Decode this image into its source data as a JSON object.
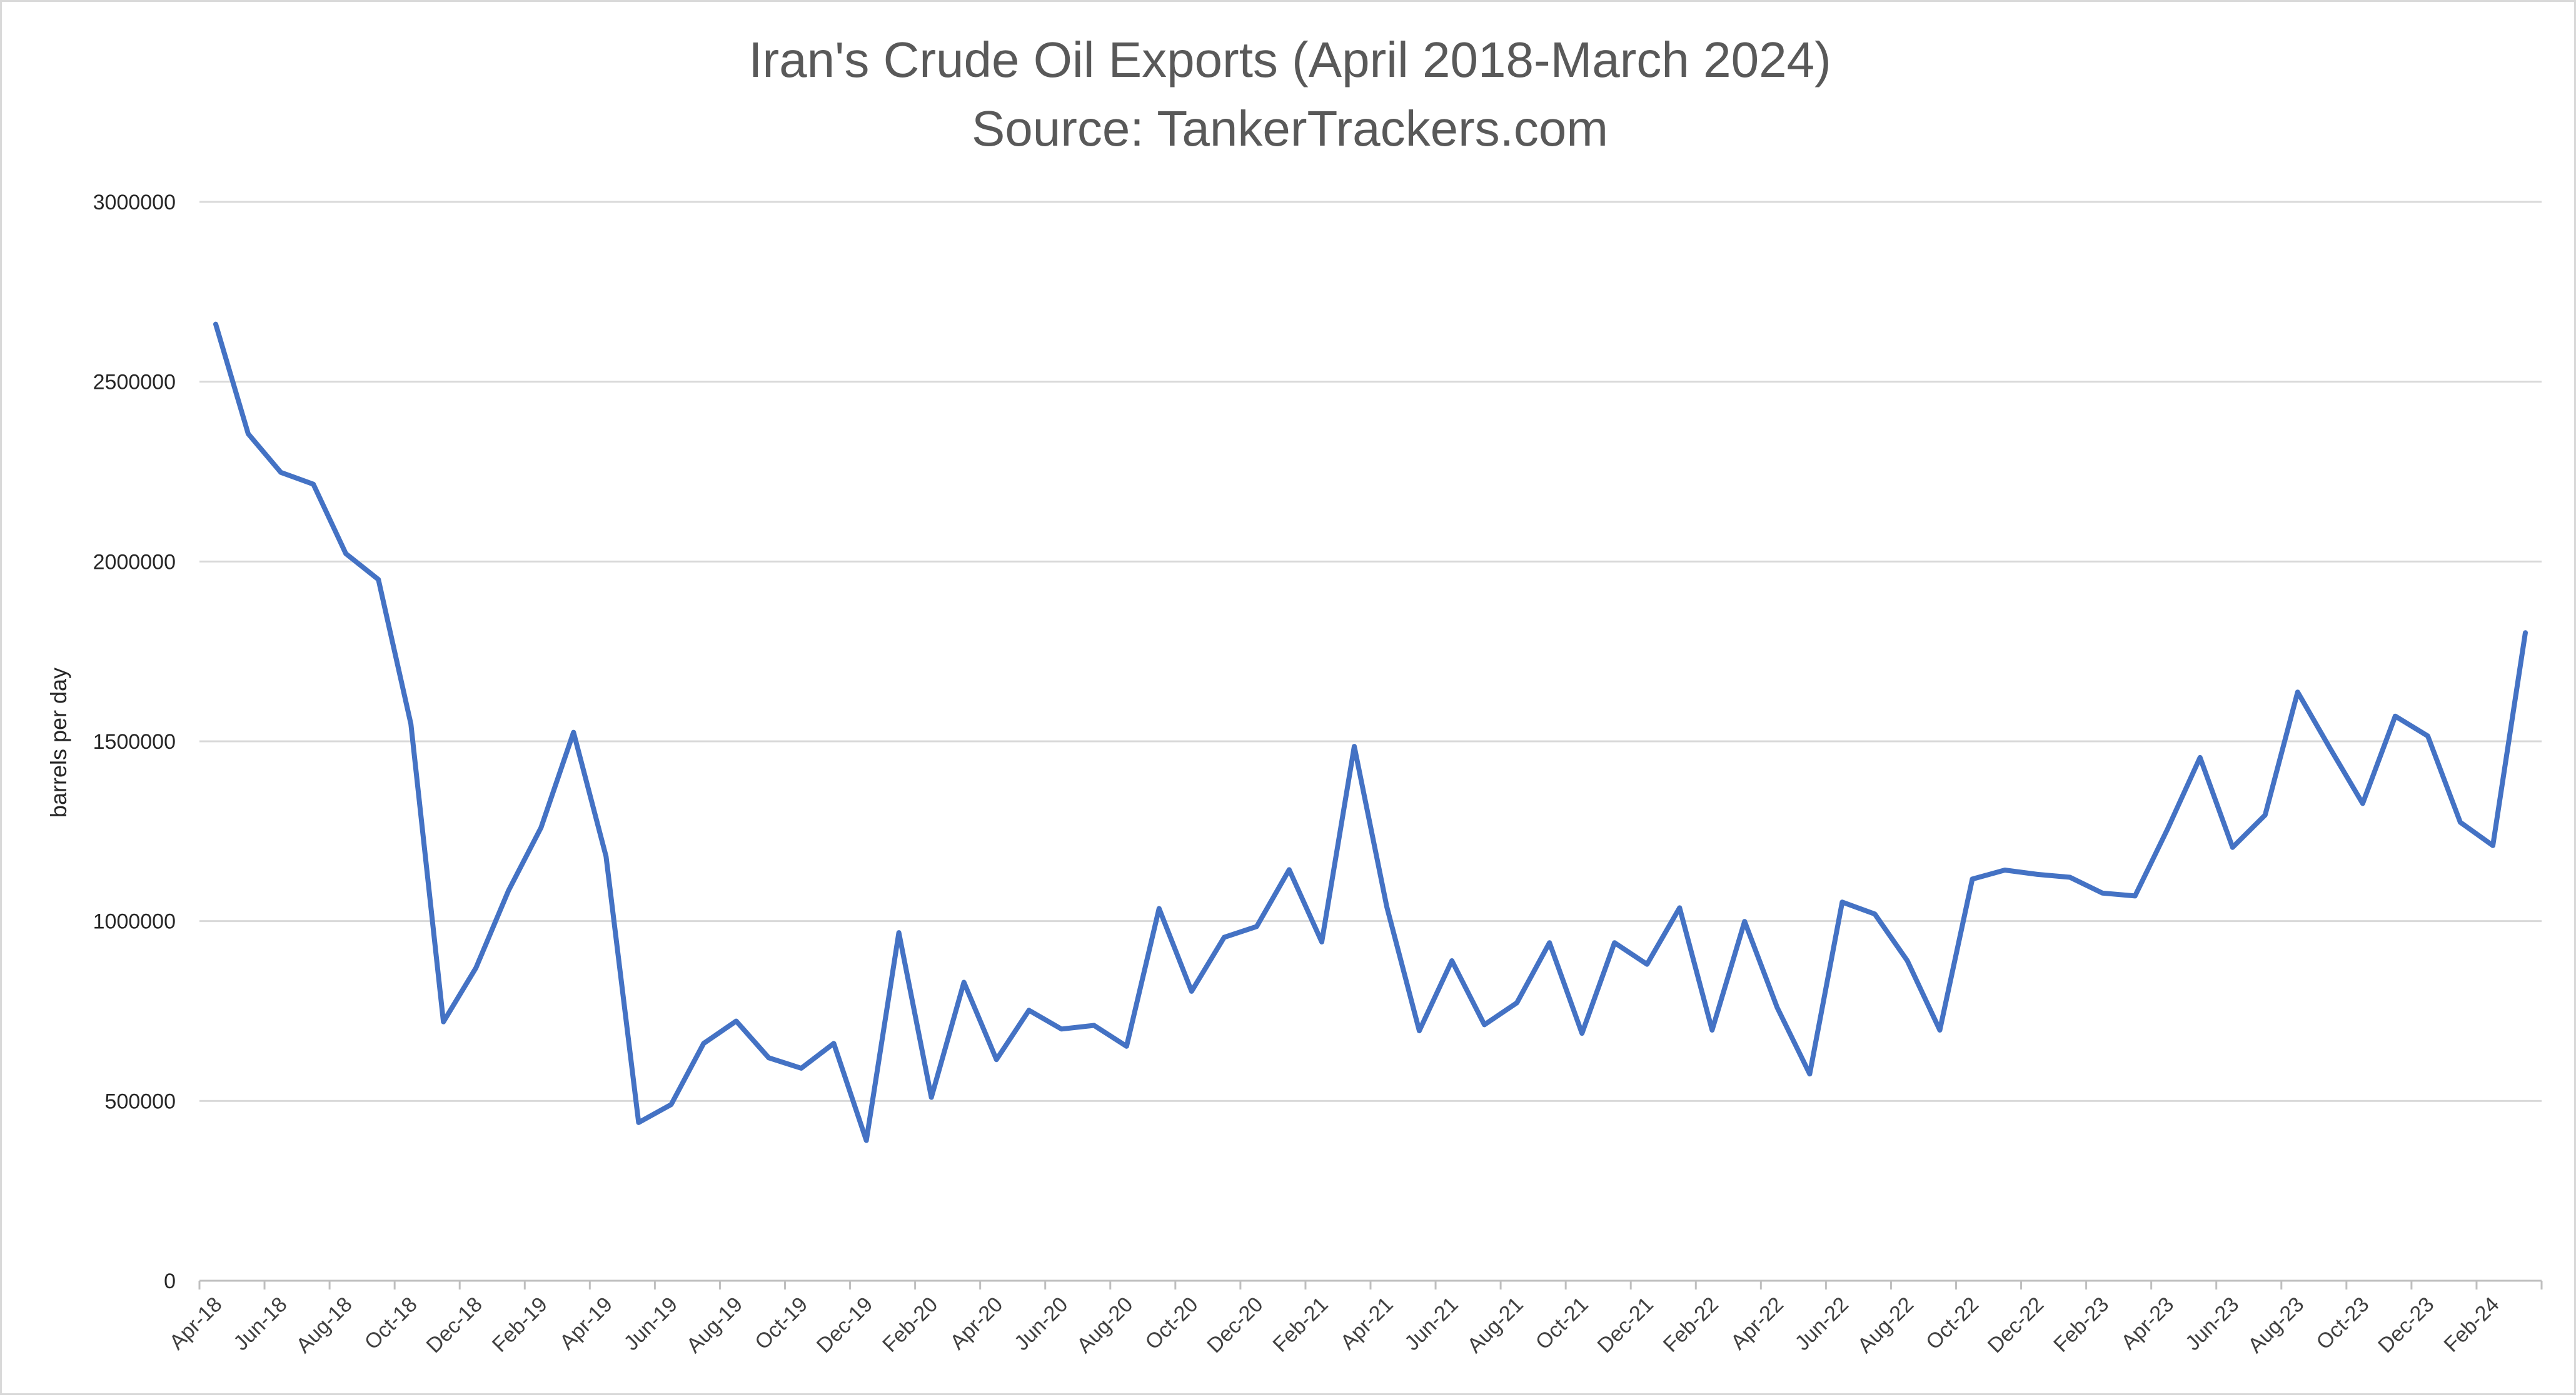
{
  "chart_data": {
    "type": "line",
    "title": "Iran's Crude Oil Exports (April 2018-March 2024)",
    "subtitle": "Source: TankerTrackers.com",
    "ylabel": "barrels per day",
    "xlabel": "",
    "ylim": [
      0,
      3000000
    ],
    "yticks": [
      "0",
      "500000",
      "1000000",
      "1500000",
      "2000000",
      "2500000",
      "3000000"
    ],
    "grid": "horizontal",
    "legend": "none",
    "line_color": "#4472C4",
    "grid_color": "#d9d9d9",
    "x": [
      "Apr-18",
      "May-18",
      "Jun-18",
      "Jul-18",
      "Aug-18",
      "Sep-18",
      "Oct-18",
      "Nov-18",
      "Dec-18",
      "Jan-19",
      "Feb-19",
      "Mar-19",
      "Apr-19",
      "May-19",
      "Jun-19",
      "Jul-19",
      "Aug-19",
      "Sep-19",
      "Oct-19",
      "Nov-19",
      "Dec-19",
      "Jan-20",
      "Feb-20",
      "Mar-20",
      "Apr-20",
      "May-20",
      "Jun-20",
      "Jul-20",
      "Aug-20",
      "Sep-20",
      "Oct-20",
      "Nov-20",
      "Dec-20",
      "Jan-21",
      "Feb-21",
      "Mar-21",
      "Apr-21",
      "May-21",
      "Jun-21",
      "Jul-21",
      "Aug-21",
      "Sep-21",
      "Oct-21",
      "Nov-21",
      "Dec-21",
      "Jan-22",
      "Feb-22",
      "Mar-22",
      "Apr-22",
      "May-22",
      "Jun-22",
      "Jul-22",
      "Aug-22",
      "Sep-22",
      "Oct-22",
      "Nov-22",
      "Dec-22",
      "Jan-23",
      "Feb-23",
      "Mar-23",
      "Apr-23",
      "May-23",
      "Jun-23",
      "Jul-23",
      "Aug-23",
      "Sep-23",
      "Oct-23",
      "Nov-23",
      "Dec-23",
      "Jan-24",
      "Feb-24",
      "Mar-24"
    ],
    "x_tick_labels": [
      "Apr-18",
      "Jun-18",
      "Aug-18",
      "Oct-18",
      "Dec-18",
      "Feb-19",
      "Apr-19",
      "Jun-19",
      "Aug-19",
      "Oct-19",
      "Dec-19",
      "Feb-20",
      "Apr-20",
      "Jun-20",
      "Aug-20",
      "Oct-20",
      "Dec-20",
      "Feb-21",
      "Apr-21",
      "Jun-21",
      "Aug-21",
      "Oct-21",
      "Dec-21",
      "Feb-22",
      "Apr-22",
      "Jun-22",
      "Aug-22",
      "Oct-22",
      "Dec-22",
      "Feb-23",
      "Apr-23",
      "Jun-23",
      "Aug-23",
      "Oct-23",
      "Dec-23",
      "Feb-24"
    ],
    "series": [
      {
        "values": [
          2660000,
          2355000,
          2248000,
          2215000,
          2022000,
          1950000,
          1548000,
          720000,
          870000,
          1085000,
          1260000,
          1525000,
          1180000,
          440000,
          490000,
          660000,
          722000,
          620000,
          591000,
          660000,
          390000,
          968000,
          510000,
          830000,
          615000,
          752000,
          700000,
          710000,
          652000,
          1035000,
          805000,
          955000,
          985000,
          1143000,
          942000,
          1486000,
          1040000,
          695000,
          890000,
          712000,
          773000,
          940000,
          688000,
          940000,
          880000,
          1037000,
          697000,
          999000,
          760000,
          575000,
          1053000,
          1020000,
          890000,
          697000,
          1117000,
          1142000,
          1130000,
          1122000,
          1078000,
          1070000,
          1256000,
          1455000,
          1205000,
          1295000,
          1637000,
          1480000,
          1327000,
          1570000,
          1515000,
          1275000,
          1210000,
          1802000
        ]
      }
    ]
  }
}
